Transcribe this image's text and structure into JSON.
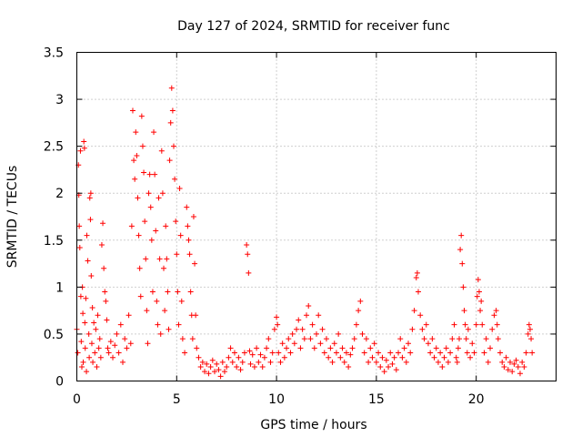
{
  "chart_data": {
    "type": "scatter",
    "title": "Day 127 of 2024, SRMTID for receiver func",
    "xlabel": "GPS time / hours",
    "ylabel": "SRMTID / TECUs",
    "xlim": [
      0,
      24
    ],
    "ylim": [
      0,
      3.5
    ],
    "x_ticks": [
      0,
      5,
      10,
      15,
      20
    ],
    "x_tick_labels": [
      "0",
      "5",
      "10",
      "15",
      "20"
    ],
    "y_ticks": [
      0,
      0.5,
      1,
      1.5,
      2,
      2.5,
      3,
      3.5
    ],
    "y_tick_labels": [
      "0",
      "0.5",
      "1",
      "1.5",
      "2",
      "2.5",
      "3",
      "3.5"
    ],
    "grid": true,
    "marker": "+",
    "marker_color": "#ff0000",
    "series": [
      {
        "name": "SRMTID",
        "points": [
          [
            0.0,
            0.55
          ],
          [
            0.05,
            0.3
          ],
          [
            0.08,
            2.3
          ],
          [
            0.1,
            1.98
          ],
          [
            0.12,
            1.65
          ],
          [
            0.15,
            1.42
          ],
          [
            0.18,
            2.45
          ],
          [
            0.2,
            0.9
          ],
          [
            0.22,
            0.42
          ],
          [
            0.25,
            0.15
          ],
          [
            0.28,
            1.0
          ],
          [
            0.3,
            0.72
          ],
          [
            0.32,
            0.2
          ],
          [
            0.35,
            2.55
          ],
          [
            0.38,
            2.48
          ],
          [
            0.4,
            0.62
          ],
          [
            0.42,
            0.35
          ],
          [
            0.45,
            0.88
          ],
          [
            0.48,
            0.1
          ],
          [
            0.5,
            1.55
          ],
          [
            0.55,
            1.28
          ],
          [
            0.6,
            0.5
          ],
          [
            0.62,
            0.25
          ],
          [
            0.65,
            1.95
          ],
          [
            0.68,
            1.72
          ],
          [
            0.7,
            2.0
          ],
          [
            0.72,
            1.12
          ],
          [
            0.75,
            0.4
          ],
          [
            0.78,
            0.78
          ],
          [
            0.8,
            0.2
          ],
          [
            0.85,
            0.62
          ],
          [
            0.9,
            0.3
          ],
          [
            0.95,
            0.55
          ],
          [
            1.0,
            0.15
          ],
          [
            1.05,
            0.7
          ],
          [
            1.1,
            0.35
          ],
          [
            1.15,
            0.45
          ],
          [
            1.2,
            0.25
          ],
          [
            1.25,
            1.45
          ],
          [
            1.3,
            1.68
          ],
          [
            1.35,
            1.2
          ],
          [
            1.4,
            0.95
          ],
          [
            1.45,
            0.85
          ],
          [
            1.5,
            0.65
          ],
          [
            1.55,
            0.35
          ],
          [
            1.6,
            0.3
          ],
          [
            1.7,
            0.42
          ],
          [
            1.8,
            0.25
          ],
          [
            1.9,
            0.38
          ],
          [
            2.0,
            0.5
          ],
          [
            2.1,
            0.3
          ],
          [
            2.2,
            0.6
          ],
          [
            2.3,
            0.2
          ],
          [
            2.4,
            0.45
          ],
          [
            2.5,
            0.35
          ],
          [
            2.6,
            0.7
          ],
          [
            2.7,
            0.4
          ],
          [
            2.75,
            1.65
          ],
          [
            2.8,
            2.88
          ],
          [
            2.85,
            2.35
          ],
          [
            2.9,
            2.15
          ],
          [
            2.95,
            2.65
          ],
          [
            3.0,
            2.4
          ],
          [
            3.05,
            1.95
          ],
          [
            3.1,
            1.55
          ],
          [
            3.15,
            1.2
          ],
          [
            3.2,
            0.9
          ],
          [
            3.25,
            2.82
          ],
          [
            3.3,
            2.5
          ],
          [
            3.35,
            2.22
          ],
          [
            3.4,
            1.7
          ],
          [
            3.45,
            1.3
          ],
          [
            3.5,
            0.75
          ],
          [
            3.55,
            0.4
          ],
          [
            3.6,
            2.0
          ],
          [
            3.65,
            2.2
          ],
          [
            3.7,
            1.85
          ],
          [
            3.75,
            1.5
          ],
          [
            3.8,
            0.95
          ],
          [
            3.85,
            2.65
          ],
          [
            3.9,
            2.2
          ],
          [
            3.95,
            1.6
          ],
          [
            4.0,
            0.85
          ],
          [
            4.05,
            0.6
          ],
          [
            4.1,
            1.95
          ],
          [
            4.15,
            1.3
          ],
          [
            4.2,
            0.5
          ],
          [
            4.25,
            2.45
          ],
          [
            4.3,
            2.0
          ],
          [
            4.35,
            1.2
          ],
          [
            4.4,
            0.75
          ],
          [
            4.45,
            1.65
          ],
          [
            4.5,
            1.3
          ],
          [
            4.55,
            0.95
          ],
          [
            4.6,
            0.55
          ],
          [
            4.65,
            2.35
          ],
          [
            4.7,
            2.75
          ],
          [
            4.75,
            3.12
          ],
          [
            4.8,
            2.88
          ],
          [
            4.85,
            2.5
          ],
          [
            4.9,
            2.15
          ],
          [
            4.95,
            1.7
          ],
          [
            5.0,
            1.35
          ],
          [
            5.05,
            0.95
          ],
          [
            5.1,
            0.6
          ],
          [
            5.15,
            2.05
          ],
          [
            5.2,
            1.55
          ],
          [
            5.25,
            0.85
          ],
          [
            5.3,
            0.45
          ],
          [
            5.4,
            0.3
          ],
          [
            5.5,
            1.85
          ],
          [
            5.55,
            1.65
          ],
          [
            5.6,
            1.5
          ],
          [
            5.65,
            1.35
          ],
          [
            5.7,
            0.95
          ],
          [
            5.75,
            0.7
          ],
          [
            5.8,
            0.45
          ],
          [
            5.85,
            1.75
          ],
          [
            5.9,
            1.25
          ],
          [
            5.95,
            0.7
          ],
          [
            6.0,
            0.35
          ],
          [
            6.1,
            0.25
          ],
          [
            6.2,
            0.15
          ],
          [
            6.3,
            0.2
          ],
          [
            6.4,
            0.1
          ],
          [
            6.5,
            0.18
          ],
          [
            6.6,
            0.08
          ],
          [
            6.7,
            0.15
          ],
          [
            6.8,
            0.22
          ],
          [
            6.9,
            0.1
          ],
          [
            7.0,
            0.18
          ],
          [
            7.1,
            0.12
          ],
          [
            7.2,
            0.05
          ],
          [
            7.3,
            0.2
          ],
          [
            7.4,
            0.1
          ],
          [
            7.5,
            0.15
          ],
          [
            7.6,
            0.25
          ],
          [
            7.7,
            0.35
          ],
          [
            7.8,
            0.2
          ],
          [
            7.9,
            0.3
          ],
          [
            8.0,
            0.15
          ],
          [
            8.1,
            0.25
          ],
          [
            8.2,
            0.12
          ],
          [
            8.3,
            0.2
          ],
          [
            8.4,
            0.3
          ],
          [
            8.5,
            1.45
          ],
          [
            8.55,
            1.35
          ],
          [
            8.6,
            1.15
          ],
          [
            8.65,
            0.32
          ],
          [
            8.7,
            0.18
          ],
          [
            8.8,
            0.28
          ],
          [
            8.9,
            0.15
          ],
          [
            9.0,
            0.35
          ],
          [
            9.1,
            0.2
          ],
          [
            9.2,
            0.28
          ],
          [
            9.3,
            0.15
          ],
          [
            9.4,
            0.25
          ],
          [
            9.5,
            0.35
          ],
          [
            9.6,
            0.45
          ],
          [
            9.7,
            0.2
          ],
          [
            9.8,
            0.3
          ],
          [
            9.9,
            0.55
          ],
          [
            10.0,
            0.68
          ],
          [
            10.05,
            0.6
          ],
          [
            10.1,
            0.3
          ],
          [
            10.2,
            0.2
          ],
          [
            10.3,
            0.4
          ],
          [
            10.4,
            0.25
          ],
          [
            10.5,
            0.35
          ],
          [
            10.6,
            0.45
          ],
          [
            10.7,
            0.3
          ],
          [
            10.8,
            0.5
          ],
          [
            10.9,
            0.4
          ],
          [
            11.0,
            0.55
          ],
          [
            11.1,
            0.65
          ],
          [
            11.2,
            0.35
          ],
          [
            11.3,
            0.55
          ],
          [
            11.4,
            0.45
          ],
          [
            11.5,
            0.7
          ],
          [
            11.6,
            0.8
          ],
          [
            11.7,
            0.45
          ],
          [
            11.8,
            0.6
          ],
          [
            11.9,
            0.35
          ],
          [
            12.0,
            0.5
          ],
          [
            12.1,
            0.7
          ],
          [
            12.2,
            0.4
          ],
          [
            12.3,
            0.55
          ],
          [
            12.4,
            0.3
          ],
          [
            12.5,
            0.45
          ],
          [
            12.6,
            0.25
          ],
          [
            12.7,
            0.35
          ],
          [
            12.8,
            0.2
          ],
          [
            12.9,
            0.4
          ],
          [
            13.0,
            0.3
          ],
          [
            13.1,
            0.5
          ],
          [
            13.2,
            0.25
          ],
          [
            13.3,
            0.35
          ],
          [
            13.4,
            0.2
          ],
          [
            13.5,
            0.3
          ],
          [
            13.6,
            0.15
          ],
          [
            13.7,
            0.28
          ],
          [
            13.8,
            0.35
          ],
          [
            13.9,
            0.45
          ],
          [
            14.0,
            0.6
          ],
          [
            14.1,
            0.75
          ],
          [
            14.2,
            0.85
          ],
          [
            14.3,
            0.5
          ],
          [
            14.4,
            0.3
          ],
          [
            14.5,
            0.45
          ],
          [
            14.6,
            0.2
          ],
          [
            14.7,
            0.35
          ],
          [
            14.8,
            0.25
          ],
          [
            14.9,
            0.4
          ],
          [
            15.0,
            0.2
          ],
          [
            15.1,
            0.3
          ],
          [
            15.2,
            0.15
          ],
          [
            15.3,
            0.25
          ],
          [
            15.4,
            0.1
          ],
          [
            15.5,
            0.22
          ],
          [
            15.6,
            0.15
          ],
          [
            15.7,
            0.3
          ],
          [
            15.8,
            0.18
          ],
          [
            15.9,
            0.25
          ],
          [
            16.0,
            0.12
          ],
          [
            16.1,
            0.3
          ],
          [
            16.2,
            0.45
          ],
          [
            16.3,
            0.25
          ],
          [
            16.4,
            0.35
          ],
          [
            16.5,
            0.2
          ],
          [
            16.6,
            0.4
          ],
          [
            16.7,
            0.3
          ],
          [
            16.8,
            0.55
          ],
          [
            16.9,
            0.75
          ],
          [
            17.0,
            1.1
          ],
          [
            17.05,
            1.15
          ],
          [
            17.1,
            0.95
          ],
          [
            17.2,
            0.7
          ],
          [
            17.3,
            0.55
          ],
          [
            17.4,
            0.45
          ],
          [
            17.5,
            0.6
          ],
          [
            17.6,
            0.4
          ],
          [
            17.7,
            0.3
          ],
          [
            17.8,
            0.45
          ],
          [
            17.9,
            0.25
          ],
          [
            18.0,
            0.35
          ],
          [
            18.1,
            0.2
          ],
          [
            18.2,
            0.3
          ],
          [
            18.3,
            0.15
          ],
          [
            18.4,
            0.25
          ],
          [
            18.5,
            0.35
          ],
          [
            18.6,
            0.2
          ],
          [
            18.7,
            0.3
          ],
          [
            18.8,
            0.45
          ],
          [
            18.9,
            0.6
          ],
          [
            19.0,
            0.25
          ],
          [
            19.05,
            0.2
          ],
          [
            19.1,
            0.35
          ],
          [
            19.15,
            0.45
          ],
          [
            19.2,
            1.4
          ],
          [
            19.25,
            1.55
          ],
          [
            19.3,
            1.25
          ],
          [
            19.35,
            1.0
          ],
          [
            19.4,
            0.75
          ],
          [
            19.45,
            0.6
          ],
          [
            19.5,
            0.45
          ],
          [
            19.55,
            0.3
          ],
          [
            19.6,
            0.55
          ],
          [
            19.7,
            0.25
          ],
          [
            19.8,
            0.4
          ],
          [
            19.9,
            0.3
          ],
          [
            20.0,
            0.6
          ],
          [
            20.05,
            0.9
          ],
          [
            20.1,
            1.08
          ],
          [
            20.15,
            0.95
          ],
          [
            20.2,
            0.75
          ],
          [
            20.25,
            0.85
          ],
          [
            20.3,
            0.6
          ],
          [
            20.4,
            0.3
          ],
          [
            20.5,
            0.45
          ],
          [
            20.6,
            0.2
          ],
          [
            20.7,
            0.35
          ],
          [
            20.8,
            0.55
          ],
          [
            20.9,
            0.7
          ],
          [
            21.0,
            0.75
          ],
          [
            21.05,
            0.6
          ],
          [
            21.1,
            0.45
          ],
          [
            21.2,
            0.3
          ],
          [
            21.3,
            0.2
          ],
          [
            21.4,
            0.15
          ],
          [
            21.5,
            0.25
          ],
          [
            21.6,
            0.12
          ],
          [
            21.7,
            0.2
          ],
          [
            21.8,
            0.1
          ],
          [
            21.9,
            0.18
          ],
          [
            22.0,
            0.22
          ],
          [
            22.1,
            0.15
          ],
          [
            22.2,
            0.08
          ],
          [
            22.3,
            0.2
          ],
          [
            22.4,
            0.15
          ],
          [
            22.5,
            0.3
          ],
          [
            22.6,
            0.5
          ],
          [
            22.65,
            0.6
          ],
          [
            22.7,
            0.55
          ],
          [
            22.75,
            0.45
          ],
          [
            22.8,
            0.3
          ]
        ]
      }
    ]
  }
}
